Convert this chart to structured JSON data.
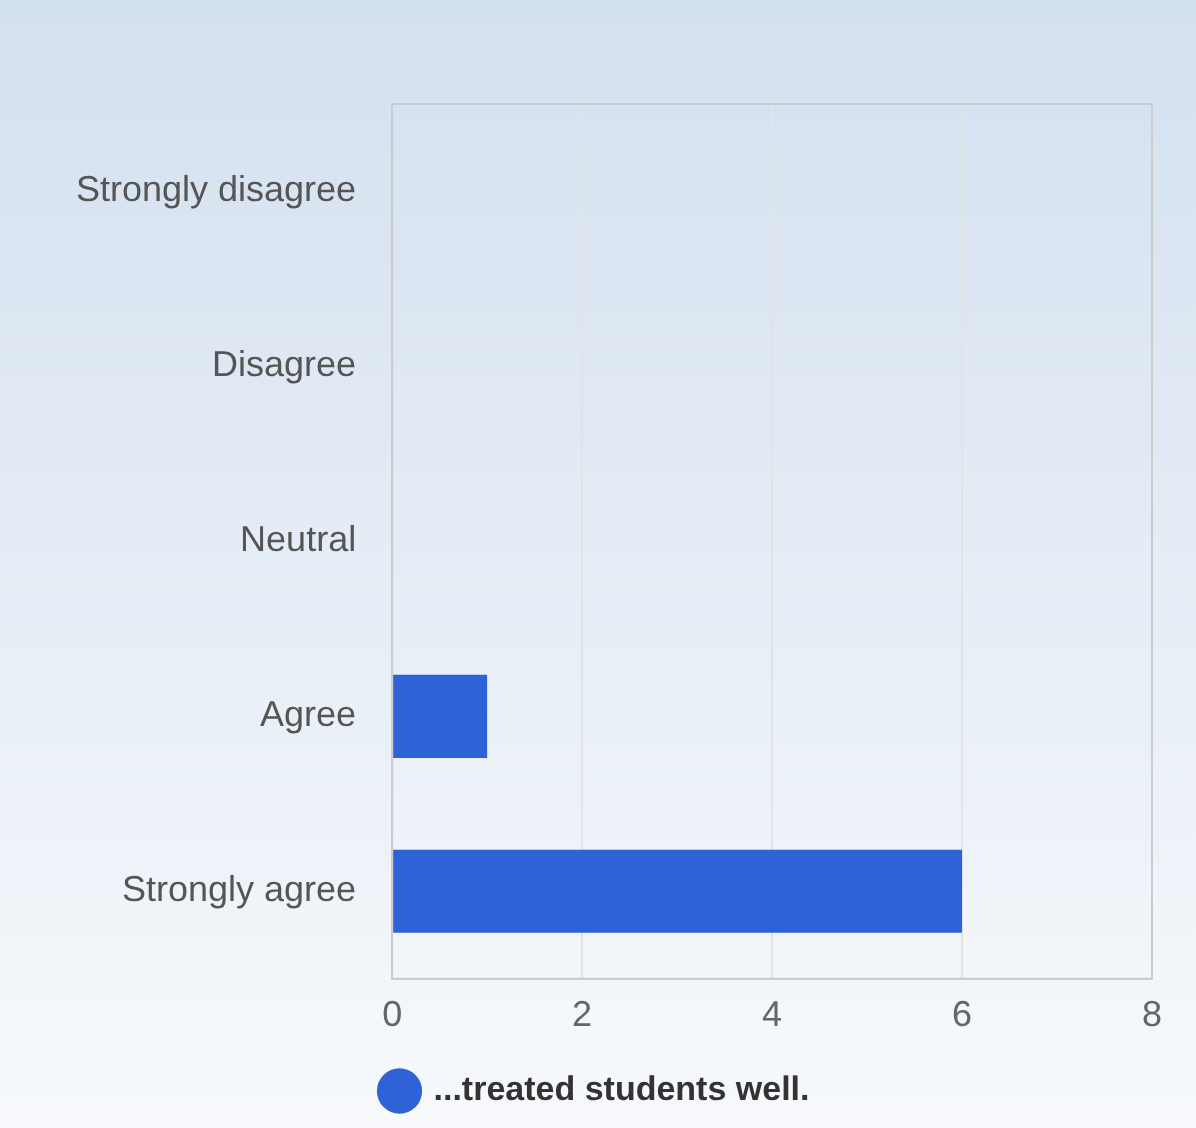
{
  "chart_data": {
    "type": "bar",
    "orientation": "horizontal",
    "categories": [
      "Strongly disagree",
      "Disagree",
      "Neutral",
      "Agree",
      "Strongly agree"
    ],
    "series": [
      {
        "name": "...treated students well.",
        "color": "#2f62d6",
        "values": [
          0,
          0,
          0,
          1,
          6
        ]
      }
    ],
    "xlim": [
      0,
      8
    ],
    "xticks": [
      0,
      2,
      4,
      6,
      8
    ],
    "grid": "x",
    "legend": "bottom"
  }
}
